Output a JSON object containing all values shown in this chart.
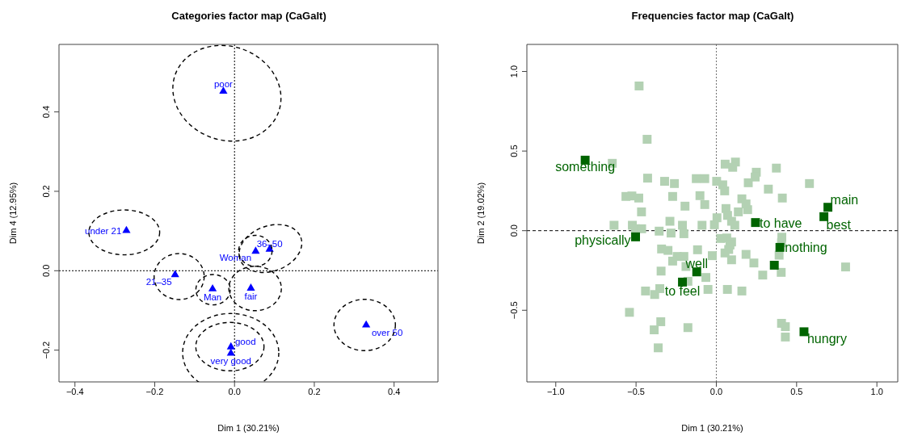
{
  "chart_data": [
    {
      "type": "scatter",
      "title": "Categories factor map (CaGalt)",
      "xlabel": "Dim 1 (30.21%)",
      "ylabel": "Dim 4 (12.95%)",
      "xlim": [
        -0.44,
        0.51
      ],
      "ylim": [
        -0.28,
        0.57
      ],
      "xticks": [
        {
          "value": -0.4,
          "label": "−0.4"
        },
        {
          "value": -0.2,
          "label": "−0.2"
        },
        {
          "value": 0,
          "label": "0.0"
        },
        {
          "value": 0.2,
          "label": "0.2"
        },
        {
          "value": 0.4,
          "label": "0.4"
        }
      ],
      "yticks": [
        {
          "value": -0.2,
          "label": "−0.2"
        },
        {
          "value": 0,
          "label": "0.0"
        },
        {
          "value": 0.2,
          "label": "0.2"
        },
        {
          "value": 0.4,
          "label": "0.4"
        }
      ],
      "ref_lines": [
        {
          "axis": "x",
          "value": 0,
          "color": "#000000",
          "line_style": "dotted"
        },
        {
          "axis": "y",
          "value": 0,
          "color": "#000000",
          "line_style": "dotted"
        }
      ],
      "series": [
        {
          "type": "scatter",
          "color": "#0000ff",
          "marker": "triangle",
          "x": [
            -0.028,
            -0.271,
            -0.149,
            -0.055,
            0.041,
            0.053,
            0.088,
            0.33,
            -0.009,
            -0.009
          ],
          "values": [
            0.452,
            0.101,
            -0.01,
            -0.046,
            -0.044,
            0.049,
            0.054,
            -0.137,
            -0.192,
            -0.208
          ]
        }
      ],
      "annotations": [
        {
          "text": "poor",
          "x": -0.028,
          "y": 0.452
        },
        {
          "text": "under 21",
          "x": -0.271,
          "y": 0.101
        },
        {
          "text": "21–35",
          "x": -0.149,
          "y": -0.01
        },
        {
          "text": "Man",
          "x": -0.055,
          "y": -0.046
        },
        {
          "text": "fair",
          "x": 0.041,
          "y": -0.044
        },
        {
          "text": "Woman",
          "x": 0.053,
          "y": 0.049
        },
        {
          "text": "36–50",
          "x": 0.088,
          "y": 0.054
        },
        {
          "text": "over 50",
          "x": 0.33,
          "y": -0.137
        },
        {
          "text": "good",
          "x": -0.009,
          "y": -0.192
        },
        {
          "text": "very good",
          "x": -0.009,
          "y": -0.208
        }
      ]
    },
    {
      "type": "scatter",
      "title": "Frequencies factor map (CaGalt)",
      "xlabel": "Dim 1 (30.21%)",
      "ylabel": "Dim 2 (19.02%)",
      "xlim": [
        -1.18,
        1.13
      ],
      "ylim": [
        -0.95,
        1.17
      ],
      "xticks": [
        {
          "value": -1,
          "label": "−1.0"
        },
        {
          "value": -0.5,
          "label": "−0.5"
        },
        {
          "value": 0,
          "label": "0.0"
        },
        {
          "value": 0.5,
          "label": "0.5"
        },
        {
          "value": 1,
          "label": "1.0"
        }
      ],
      "yticks": [
        {
          "value": -0.5,
          "label": "−0.5"
        },
        {
          "value": 0,
          "label": "0.0"
        },
        {
          "value": 0.5,
          "label": "0.5"
        },
        {
          "value": 1,
          "label": "1.0"
        }
      ],
      "ref_lines": [
        {
          "axis": "x",
          "value": 0,
          "color": "#707070",
          "line_style": "dotted"
        },
        {
          "axis": "y",
          "value": 0,
          "color": "#000000",
          "line_style": "dashed"
        }
      ],
      "series": [
        {
          "type": "scatter",
          "color": "#b3d1b3",
          "marker": "square",
          "x": [
            -0.481,
            -0.431,
            -0.648,
            -0.428,
            -0.322,
            -0.261,
            -0.125,
            -0.072,
            0.055,
            0.119,
            0.102,
            0.249,
            0.242,
            0.374,
            0.58,
            0.002,
            0.04,
            0.052,
            0.199,
            0.324,
            0.411,
            -0.563,
            -0.526,
            -0.483,
            -0.272,
            -0.102,
            -0.195,
            -0.072,
            -0.466,
            0.159,
            0.185,
            0.195,
            0.06,
            0.07,
            0.137,
            0.004,
            0.095,
            0.115,
            -0.289,
            -0.637,
            -0.523,
            -0.503,
            -0.465,
            -0.356,
            -0.282,
            -0.211,
            -0.202,
            -0.089,
            -0.012,
            0.027,
            0.065,
            0.095,
            0.085,
            0.408,
            0.406,
            -0.341,
            -0.301,
            -0.244,
            -0.202,
            -0.117,
            -0.025,
            0.054,
            0.077,
            0.095,
            0.185,
            0.234,
            0.391,
            0.805,
            -0.272,
            -0.344,
            -0.189,
            -0.065,
            0.289,
            0.404,
            -0.177,
            -0.441,
            -0.384,
            -0.352,
            -0.052,
            0.069,
            0.159,
            -0.541,
            -0.346,
            -0.387,
            -0.177,
            -0.362,
            0.406,
            0.43,
            0.43
          ],
          "values": [
            0.909,
            0.574,
            0.423,
            0.33,
            0.31,
            0.296,
            0.327,
            0.327,
            0.418,
            0.431,
            0.398,
            0.367,
            0.337,
            0.393,
            0.296,
            0.31,
            0.288,
            0.25,
            0.301,
            0.261,
            0.205,
            0.215,
            0.218,
            0.205,
            0.215,
            0.22,
            0.154,
            0.164,
            0.118,
            0.2,
            0.168,
            0.132,
            0.139,
            0.096,
            0.118,
            0.081,
            0.059,
            0.034,
            0.059,
            0.034,
            0.034,
            0.012,
            0.012,
            -0.003,
            -0.015,
            0.034,
            -0.019,
            0.034,
            0.037,
            -0.049,
            -0.046,
            -0.071,
            -0.09,
            -0.041,
            -0.076,
            -0.115,
            -0.124,
            -0.162,
            -0.162,
            -0.12,
            -0.157,
            -0.14,
            -0.118,
            -0.183,
            -0.149,
            -0.203,
            -0.154,
            -0.228,
            -0.191,
            -0.254,
            -0.225,
            -0.294,
            -0.279,
            -0.262,
            -0.318,
            -0.379,
            -0.401,
            -0.364,
            -0.369,
            -0.369,
            -0.379,
            -0.513,
            -0.572,
            -0.623,
            -0.609,
            -0.736,
            -0.582,
            -0.603,
            -0.668
          ]
        },
        {
          "type": "scatter",
          "color": "#006400",
          "marker": "square",
          "x": [
            -0.817,
            -0.503,
            0.695,
            0.67,
            0.244,
            0.396,
            0.361,
            -0.122,
            -0.211,
            0.546
          ],
          "values": [
            0.443,
            -0.039,
            0.147,
            0.088,
            0.051,
            -0.105,
            -0.217,
            -0.259,
            -0.323,
            -0.635
          ]
        }
      ],
      "annotations": [
        {
          "text": "something",
          "x": -0.817,
          "y": 0.443
        },
        {
          "text": "physically",
          "x": -0.503,
          "y": -0.039
        },
        {
          "text": "main",
          "x": 0.695,
          "y": 0.147
        },
        {
          "text": "best",
          "x": 0.67,
          "y": 0.088
        },
        {
          "text": "to have",
          "x": 0.244,
          "y": 0.051
        },
        {
          "text": "nothing",
          "x": 0.396,
          "y": -0.105
        },
        {
          "text": "well",
          "x": -0.122,
          "y": -0.259
        },
        {
          "text": "to feel",
          "x": -0.211,
          "y": -0.323
        },
        {
          "text": "hungry",
          "x": 0.546,
          "y": -0.635
        }
      ]
    }
  ]
}
